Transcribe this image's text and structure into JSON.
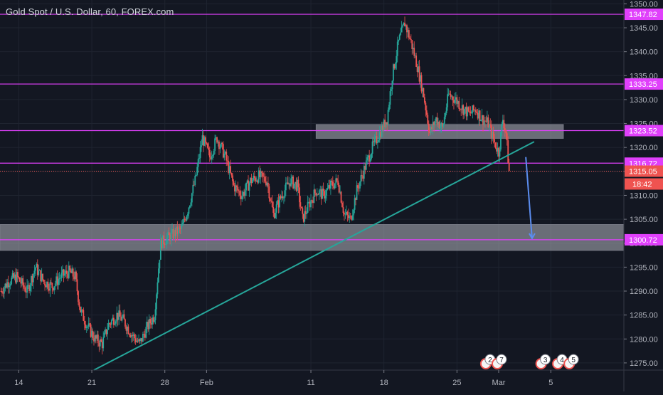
{
  "chart_data": {
    "type": "candlestick",
    "title": "Gold Spot / U.S. Dollar, 60, FOREX.com",
    "y_axis": {
      "ticks": [
        1275,
        1280,
        1285,
        1290,
        1295,
        1300,
        1305,
        1310,
        1315,
        1320,
        1325,
        1330,
        1335,
        1340,
        1345,
        1350
      ],
      "ticks_labeled": [
        "1275.00",
        "1280.00",
        "1285.00",
        "1290.00",
        "1295.00",
        "1300.00",
        "1305.00",
        "1310.00",
        "1315.00",
        "1320.00",
        "1325.00",
        "1330.00",
        "1335.00",
        "1340.00",
        "1345.00",
        "1350.00"
      ],
      "range": [
        1273.5,
        1350.8
      ]
    },
    "x_axis": {
      "ticks": [
        "14",
        "21",
        "28",
        "Feb",
        "11",
        "18",
        "25",
        "Mar",
        "5"
      ],
      "tick_days": [
        14,
        21,
        28,
        32,
        42,
        49,
        56,
        60,
        65
      ],
      "range_days": [
        12.2,
        72
      ]
    },
    "current_price": "1315.05",
    "countdown": "18:42",
    "horizontal_levels": [
      {
        "value": 1347.82,
        "label": "1347.82",
        "color": "#e040fb"
      },
      {
        "value": 1333.25,
        "label": "1333.25",
        "color": "#e040fb"
      },
      {
        "value": 1323.52,
        "label": "1323.52",
        "color": "#e040fb"
      },
      {
        "value": 1316.72,
        "label": "1316.72",
        "color": "#e040fb"
      },
      {
        "value": 1300.72,
        "label": "1300.72",
        "color": "#e040fb"
      }
    ],
    "zones": [
      {
        "from_day": 42.5,
        "to_day": 66.2,
        "low": 1321.9,
        "high": 1324.8,
        "color": "#b2b5be"
      },
      {
        "from_day": 12.2,
        "to_day": 72,
        "low": 1298.5,
        "high": 1303.9,
        "color": "#b2b5be"
      }
    ],
    "trendline": {
      "points": [
        {
          "day": 21.2,
          "value": 1273.5
        },
        {
          "day": 63.4,
          "value": 1321.2
        }
      ],
      "color": "#26a69a"
    },
    "arrow": {
      "points": [
        {
          "day": 62.6,
          "value": 1318.0
        },
        {
          "day": 63.2,
          "value": 1301.0
        }
      ],
      "color": "#5b8def"
    },
    "colors": {
      "up": "#26a69a",
      "down": "#ef5350",
      "level": "#e040fb",
      "background": "#131722",
      "text": "#b2b5be",
      "price_label": "#ef5350"
    },
    "close_path": [
      {
        "day": 12.3,
        "value": 1290
      },
      {
        "day": 13.0,
        "value": 1292
      },
      {
        "day": 13.8,
        "value": 1293
      },
      {
        "day": 14.8,
        "value": 1290
      },
      {
        "day": 15.6,
        "value": 1295
      },
      {
        "day": 16.4,
        "value": 1292
      },
      {
        "day": 17.2,
        "value": 1291
      },
      {
        "day": 18.0,
        "value": 1293
      },
      {
        "day": 18.8,
        "value": 1294
      },
      {
        "day": 19.4,
        "value": 1293
      },
      {
        "day": 19.9,
        "value": 1286
      },
      {
        "day": 20.5,
        "value": 1283
      },
      {
        "day": 21.3,
        "value": 1280
      },
      {
        "day": 22.0,
        "value": 1279
      },
      {
        "day": 22.6,
        "value": 1283
      },
      {
        "day": 23.4,
        "value": 1285
      },
      {
        "day": 24.0,
        "value": 1284
      },
      {
        "day": 24.8,
        "value": 1281
      },
      {
        "day": 25.6,
        "value": 1279
      },
      {
        "day": 26.2,
        "value": 1282
      },
      {
        "day": 27.0,
        "value": 1285
      },
      {
        "day": 27.6,
        "value": 1300
      },
      {
        "day": 28.2,
        "value": 1301
      },
      {
        "day": 28.9,
        "value": 1302
      },
      {
        "day": 29.6,
        "value": 1303
      },
      {
        "day": 30.2,
        "value": 1307
      },
      {
        "day": 30.9,
        "value": 1313
      },
      {
        "day": 31.6,
        "value": 1322
      },
      {
        "day": 32.3,
        "value": 1318
      },
      {
        "day": 33.0,
        "value": 1322
      },
      {
        "day": 33.8,
        "value": 1318
      },
      {
        "day": 34.6,
        "value": 1312
      },
      {
        "day": 35.4,
        "value": 1310
      },
      {
        "day": 36.2,
        "value": 1313
      },
      {
        "day": 37.0,
        "value": 1314
      },
      {
        "day": 37.8,
        "value": 1313
      },
      {
        "day": 38.4,
        "value": 1306
      },
      {
        "day": 39.2,
        "value": 1310
      },
      {
        "day": 40.0,
        "value": 1313
      },
      {
        "day": 40.7,
        "value": 1312
      },
      {
        "day": 41.2,
        "value": 1305
      },
      {
        "day": 41.8,
        "value": 1308
      },
      {
        "day": 42.5,
        "value": 1311
      },
      {
        "day": 43.2,
        "value": 1310
      },
      {
        "day": 43.9,
        "value": 1312
      },
      {
        "day": 44.6,
        "value": 1313
      },
      {
        "day": 45.2,
        "value": 1306
      },
      {
        "day": 45.8,
        "value": 1305
      },
      {
        "day": 46.4,
        "value": 1311
      },
      {
        "day": 47.2,
        "value": 1316
      },
      {
        "day": 47.9,
        "value": 1320
      },
      {
        "day": 48.6,
        "value": 1323
      },
      {
        "day": 49.3,
        "value": 1326
      },
      {
        "day": 49.8,
        "value": 1335
      },
      {
        "day": 50.4,
        "value": 1342
      },
      {
        "day": 51.0,
        "value": 1346
      },
      {
        "day": 51.6,
        "value": 1342
      },
      {
        "day": 52.2,
        "value": 1337
      },
      {
        "day": 52.8,
        "value": 1331
      },
      {
        "day": 53.4,
        "value": 1323
      },
      {
        "day": 54.0,
        "value": 1326
      },
      {
        "day": 54.6,
        "value": 1324
      },
      {
        "day": 55.2,
        "value": 1331
      },
      {
        "day": 55.9,
        "value": 1330
      },
      {
        "day": 56.6,
        "value": 1328
      },
      {
        "day": 57.2,
        "value": 1327
      },
      {
        "day": 57.8,
        "value": 1328
      },
      {
        "day": 58.4,
        "value": 1326
      },
      {
        "day": 59.0,
        "value": 1325
      },
      {
        "day": 59.6,
        "value": 1321
      },
      {
        "day": 60.0,
        "value": 1319
      },
      {
        "day": 60.4,
        "value": 1326
      },
      {
        "day": 60.7,
        "value": 1323
      },
      {
        "day": 61.0,
        "value": 1315
      }
    ],
    "event_markers": [
      {
        "day": 58.9,
        "label": "2"
      },
      {
        "day": 60.0,
        "label": "7"
      },
      {
        "day": 64.2,
        "label": "3"
      },
      {
        "day": 65.8,
        "label": "4"
      },
      {
        "day": 66.9,
        "label": "5"
      }
    ]
  }
}
